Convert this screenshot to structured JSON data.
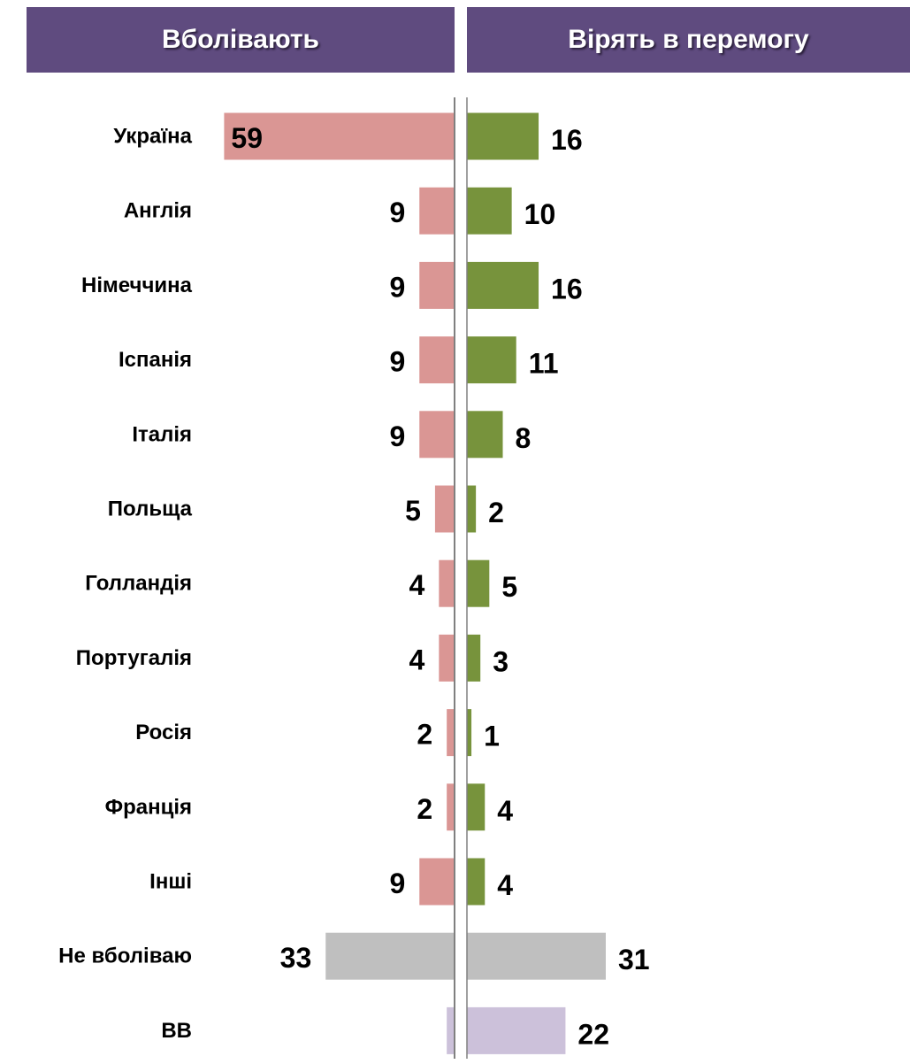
{
  "headers": {
    "left": "Вболівають",
    "right": "Вірять в перемогу"
  },
  "colors": {
    "header_bg": "#5f4b7f",
    "support_bar": "#da9694",
    "believe_bar": "#77933c",
    "no_support_bar": "#bfbfbf",
    "dk_bar": "#ccc1da",
    "axis": "#808080"
  },
  "chart_data": [
    {
      "type": "bar",
      "orientation": "horizontal",
      "direction": "leftward",
      "title": "Вболівають",
      "categories": [
        "Україна",
        "Англія",
        "Німеччина",
        "Іспанія",
        "Італія",
        "Польща",
        "Голландія",
        "Португалія",
        "Росія",
        "Франція",
        "Інші",
        "Не вболіваю",
        "ВВ"
      ],
      "values": [
        59,
        9,
        9,
        9,
        9,
        5,
        4,
        4,
        2,
        2,
        9,
        33,
        2
      ],
      "value_labels": [
        "59",
        "9",
        "9",
        "9",
        "9",
        "5",
        "4",
        "4",
        "2",
        "2",
        "9",
        "33",
        ""
      ],
      "colors": [
        "#da9694",
        "#da9694",
        "#da9694",
        "#da9694",
        "#da9694",
        "#da9694",
        "#da9694",
        "#da9694",
        "#da9694",
        "#da9694",
        "#da9694",
        "#bfbfbf",
        "#ccc1da"
      ],
      "xlim": [
        0,
        60
      ]
    },
    {
      "type": "bar",
      "orientation": "horizontal",
      "direction": "rightward",
      "title": "Вірять в перемогу",
      "categories": [
        "Україна",
        "Англія",
        "Німеччина",
        "Іспанія",
        "Італія",
        "Польща",
        "Голландія",
        "Португалія",
        "Росія",
        "Франція",
        "Інші",
        "Не вболіваю",
        "ВВ"
      ],
      "values": [
        16,
        10,
        16,
        11,
        8,
        2,
        5,
        3,
        1,
        4,
        4,
        31,
        22
      ],
      "value_labels": [
        "16",
        "10",
        "16",
        "11",
        "8",
        "2",
        "5",
        "3",
        "1",
        "4",
        "4",
        "31",
        "22"
      ],
      "colors": [
        "#77933c",
        "#77933c",
        "#77933c",
        "#77933c",
        "#77933c",
        "#77933c",
        "#77933c",
        "#77933c",
        "#77933c",
        "#77933c",
        "#77933c",
        "#bfbfbf",
        "#ccc1da"
      ],
      "xlim": [
        0,
        31
      ]
    }
  ]
}
